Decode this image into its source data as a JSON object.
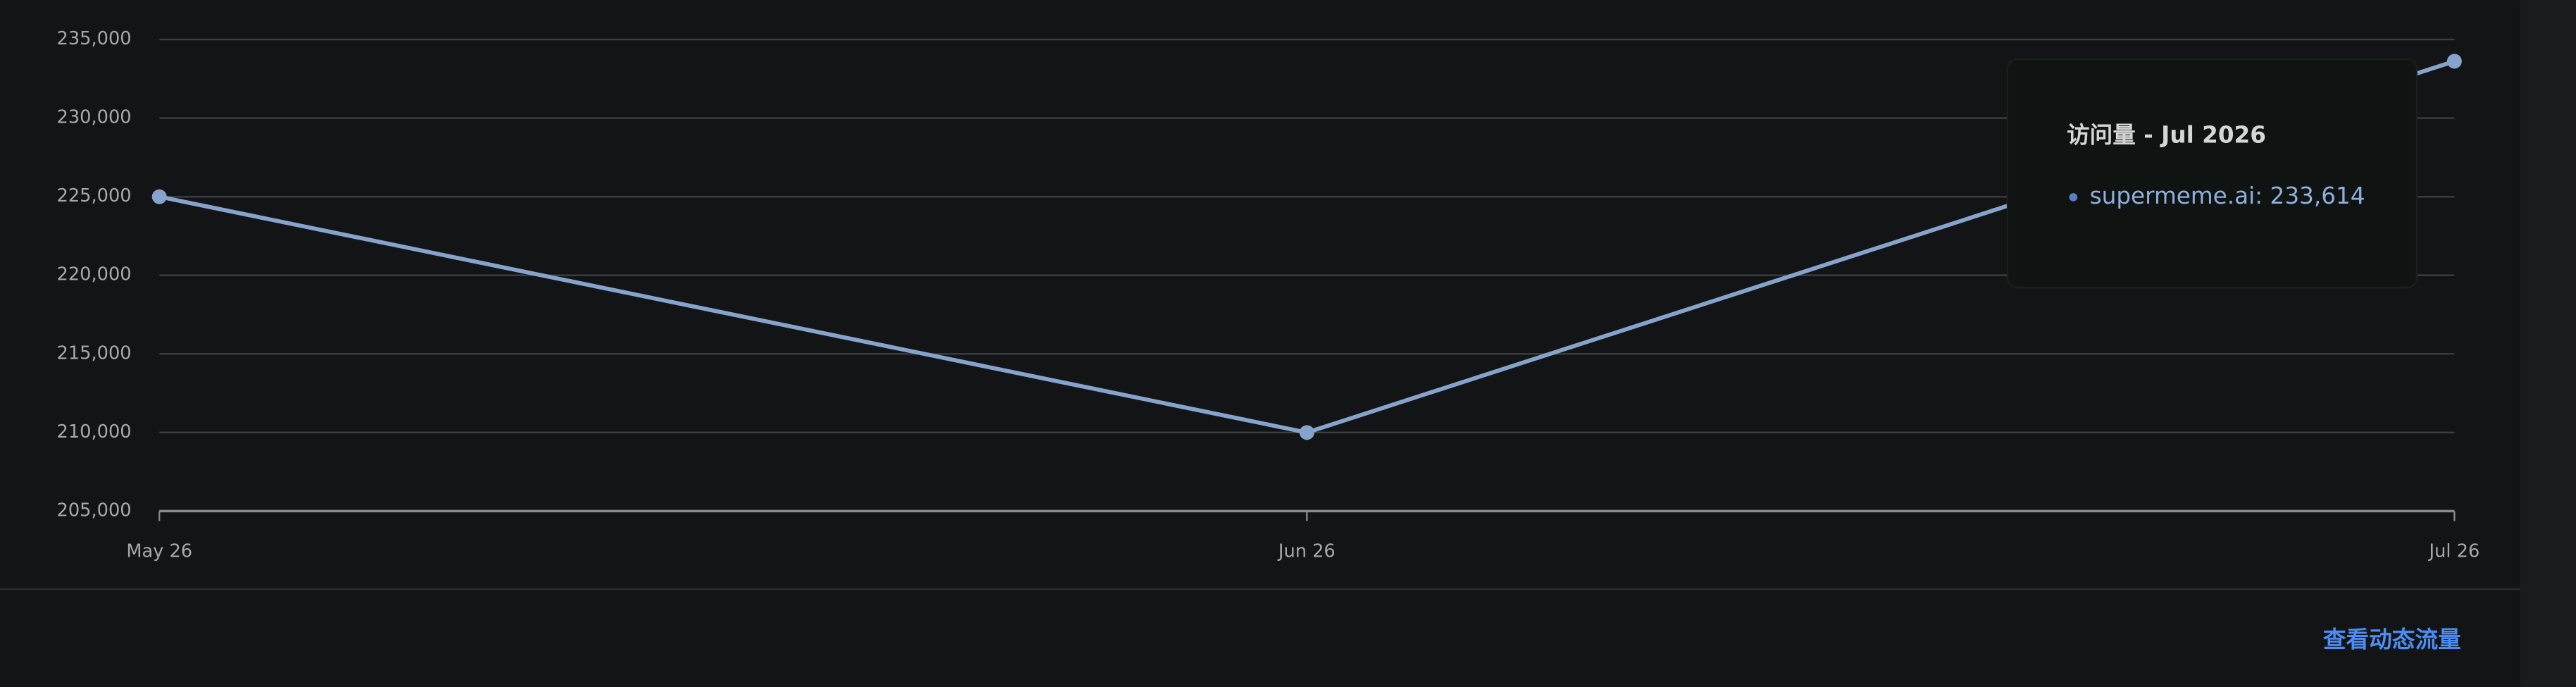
{
  "chart_data": {
    "type": "line",
    "categories": [
      "May 26",
      "Jun 26",
      "Jul 26"
    ],
    "series": [
      {
        "name": "supermeme.ai",
        "color": "#86a3cc",
        "values": [
          225000,
          210000,
          233614
        ]
      }
    ],
    "ylim": [
      205000,
      235000
    ],
    "yticks": [
      {
        "value": 205000,
        "label": "205,000"
      },
      {
        "value": 210000,
        "label": "210,000"
      },
      {
        "value": 215000,
        "label": "215,000"
      },
      {
        "value": 220000,
        "label": "220,000"
      },
      {
        "value": 225000,
        "label": "225,000"
      },
      {
        "value": 230000,
        "label": "230,000"
      },
      {
        "value": 235000,
        "label": "235,000"
      }
    ],
    "grid": true,
    "tooltip": {
      "title": "访问量 - Jul 2026",
      "text": "supermeme.ai: 233,614"
    }
  },
  "link": "查看动态流量"
}
